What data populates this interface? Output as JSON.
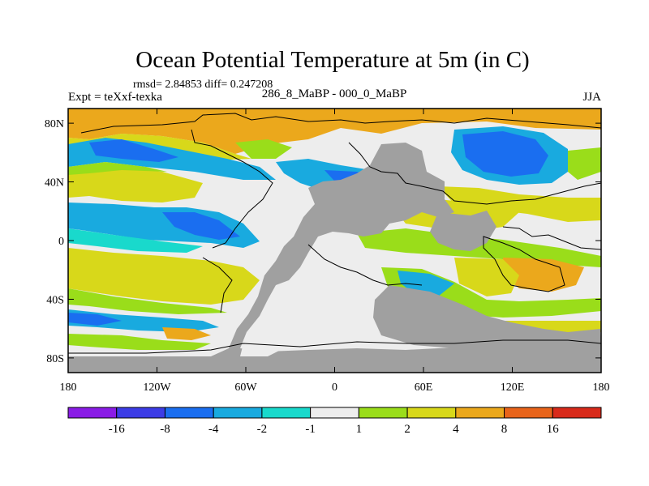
{
  "title": "Ocean Potential Temperature at 5m (in C)",
  "stats_line": "rmsd= 2.84853 diff= 0.247208",
  "experiment_label": "Expt = teXxf-texka",
  "comparison_label": "286_8_MaBP - 000_0_MaBP",
  "season_label": "JJA",
  "map": {
    "lat_range": [
      -90,
      90
    ],
    "lon_range": [
      -180,
      180
    ],
    "y_ticks": [
      {
        "lat": 80,
        "label": "80N"
      },
      {
        "lat": 40,
        "label": "40N"
      },
      {
        "lat": 0,
        "label": "0"
      },
      {
        "lat": -40,
        "label": "40S"
      },
      {
        "lat": -80,
        "label": "80S"
      }
    ],
    "x_ticks": [
      {
        "lon": -180,
        "label": "180"
      },
      {
        "lon": -120,
        "label": "120W"
      },
      {
        "lon": -60,
        "label": "60W"
      },
      {
        "lon": 0,
        "label": "0"
      },
      {
        "lon": 60,
        "label": "60E"
      },
      {
        "lon": 120,
        "label": "120E"
      },
      {
        "lon": 180,
        "label": "180"
      }
    ]
  },
  "colorbar": {
    "colors": [
      "#8a1ce6",
      "#3c3ce6",
      "#1a6ef0",
      "#19aadf",
      "#19d9cc",
      "#ededed",
      "#9add1a",
      "#d8d81a",
      "#eba81c",
      "#e8641a",
      "#d82a1a"
    ],
    "labels": [
      "-16",
      "-8",
      "-4",
      "-2",
      "-1",
      "1",
      "2",
      "4",
      "8",
      "16"
    ]
  }
}
